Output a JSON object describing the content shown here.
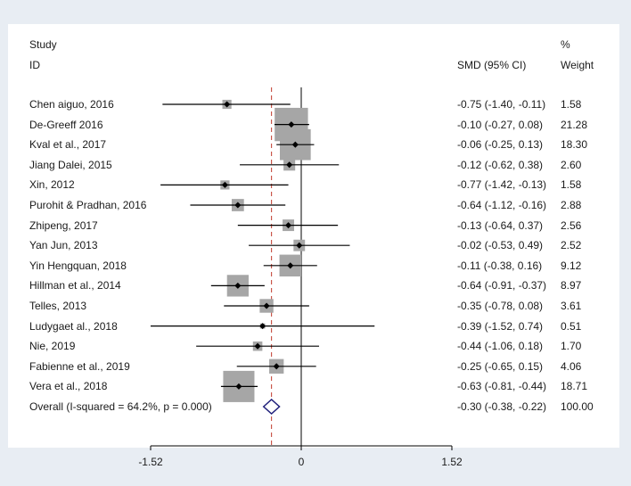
{
  "colors": {
    "background": "#e8edf3",
    "plot": "#ffffff",
    "box": "#a6a6a6",
    "line": "#000000",
    "diamond": "#1f1f7a",
    "overall_line": "#c0392b"
  },
  "header": {
    "study_label": "Study",
    "id_label": "ID",
    "effect_label": "SMD (95% CI)",
    "percent_label": "%",
    "weight_label": "Weight"
  },
  "chart_data": {
    "type": "forest",
    "xlim": [
      -1.6,
      1.6
    ],
    "x_ticks": [
      -1.52,
      0,
      1.52
    ],
    "x_tick_labels": [
      "-1.52",
      "0",
      "1.52"
    ],
    "studies": [
      {
        "label": "Chen aiguo, 2016",
        "est": -0.75,
        "lo": -1.4,
        "hi": -0.11,
        "ci_text": "-0.75 (-1.40, -0.11)",
        "weight": 1.58,
        "weight_text": "1.58"
      },
      {
        "label": "De-Greeff 2016",
        "est": -0.1,
        "lo": -0.27,
        "hi": 0.08,
        "ci_text": "-0.10 (-0.27, 0.08)",
        "weight": 21.28,
        "weight_text": "21.28"
      },
      {
        "label": "Kval et al., 2017",
        "est": -0.06,
        "lo": -0.25,
        "hi": 0.13,
        "ci_text": "-0.06 (-0.25, 0.13)",
        "weight": 18.3,
        "weight_text": "18.30"
      },
      {
        "label": "Jiang Dalei, 2015",
        "est": -0.12,
        "lo": -0.62,
        "hi": 0.38,
        "ci_text": "-0.12 (-0.62, 0.38)",
        "weight": 2.6,
        "weight_text": "2.60"
      },
      {
        "label": "Xin, 2012",
        "est": -0.77,
        "lo": -1.42,
        "hi": -0.13,
        "ci_text": "-0.77 (-1.42, -0.13)",
        "weight": 1.58,
        "weight_text": "1.58"
      },
      {
        "label": "Purohit & Pradhan, 2016",
        "est": -0.64,
        "lo": -1.12,
        "hi": -0.16,
        "ci_text": "-0.64 (-1.12, -0.16)",
        "weight": 2.88,
        "weight_text": "2.88"
      },
      {
        "label": "Zhipeng, 2017",
        "est": -0.13,
        "lo": -0.64,
        "hi": 0.37,
        "ci_text": "-0.13 (-0.64, 0.37)",
        "weight": 2.56,
        "weight_text": "2.56"
      },
      {
        "label": "Yan Jun, 2013",
        "est": -0.02,
        "lo": -0.53,
        "hi": 0.49,
        "ci_text": "-0.02 (-0.53, 0.49)",
        "weight": 2.52,
        "weight_text": "2.52"
      },
      {
        "label": "Yin Hengquan, 2018",
        "est": -0.11,
        "lo": -0.38,
        "hi": 0.16,
        "ci_text": "-0.11 (-0.38, 0.16)",
        "weight": 9.12,
        "weight_text": "9.12"
      },
      {
        "label": "Hillman et al., 2014",
        "est": -0.64,
        "lo": -0.91,
        "hi": -0.37,
        "ci_text": "-0.64 (-0.91, -0.37)",
        "weight": 8.97,
        "weight_text": "8.97"
      },
      {
        "label": "Telles, 2013",
        "est": -0.35,
        "lo": -0.78,
        "hi": 0.08,
        "ci_text": "-0.35 (-0.78, 0.08)",
        "weight": 3.61,
        "weight_text": "3.61"
      },
      {
        "label": "Ludygaet al., 2018",
        "est": -0.39,
        "lo": -1.52,
        "hi": 0.74,
        "ci_text": "-0.39 (-1.52, 0.74)",
        "weight": 0.51,
        "weight_text": "0.51"
      },
      {
        "label": "Nie, 2019",
        "est": -0.44,
        "lo": -1.06,
        "hi": 0.18,
        "ci_text": "-0.44 (-1.06, 0.18)",
        "weight": 1.7,
        "weight_text": "1.70"
      },
      {
        "label": "Fabienne et al., 2019",
        "est": -0.25,
        "lo": -0.65,
        "hi": 0.15,
        "ci_text": "-0.25 (-0.65, 0.15)",
        "weight": 4.06,
        "weight_text": "4.06"
      },
      {
        "label": "Vera et al., 2018",
        "est": -0.63,
        "lo": -0.81,
        "hi": -0.44,
        "ci_text": "-0.63 (-0.81, -0.44)",
        "weight": 18.71,
        "weight_text": "18.71"
      }
    ],
    "overall": {
      "label": "Overall  (I-squared = 64.2%, p = 0.000)",
      "est": -0.3,
      "lo": -0.38,
      "hi": -0.22,
      "ci_text": "-0.30 (-0.38, -0.22)",
      "weight_text": "100.00"
    }
  }
}
